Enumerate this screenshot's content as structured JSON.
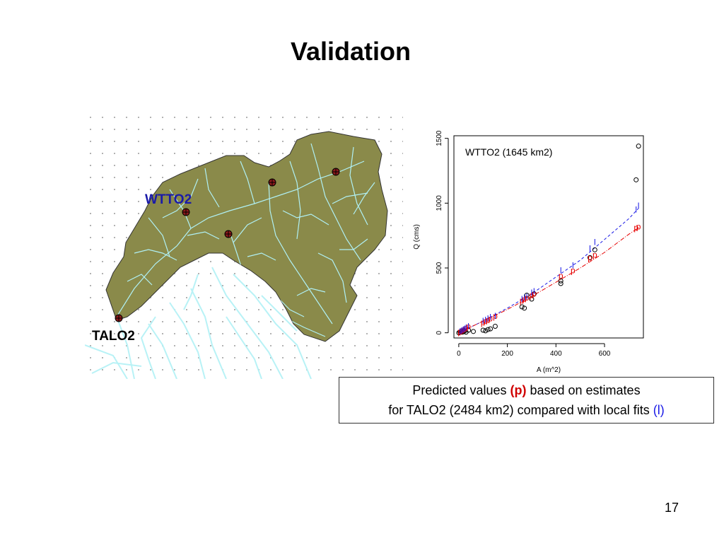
{
  "slide": {
    "title": "Validation",
    "page_number": "17"
  },
  "map": {
    "labels": {
      "wtto2": "WTTO2",
      "talo2": "TALO2"
    },
    "colors": {
      "watershed_fill": "#8a8a4a",
      "streams": "#b0f0f4",
      "gauge": "#8b1a1a"
    }
  },
  "caption": {
    "line1_before": "Predicted values ",
    "line1_highlight": "(p)",
    "line1_after": " based on estimates",
    "line2_before": "for TALO2 (2484 km2) compared with local fits ",
    "line2_highlight": "(l)"
  },
  "colors": {
    "predicted": "#e60000",
    "local": "#1a1ae6",
    "observed": "#000000"
  },
  "chart_data": {
    "type": "scatter",
    "annotation": "WTTO2 (1645 km2)",
    "xlabel": "A (m^2)",
    "ylabel": "Q (cms)",
    "xlim": [
      -20,
      760
    ],
    "ylim": [
      -40,
      1520
    ],
    "x_ticks": [
      0,
      200,
      400,
      600
    ],
    "y_ticks": [
      0,
      500,
      1000,
      1500
    ],
    "grid": false,
    "series": [
      {
        "marker": "o",
        "color": "#000000",
        "x": [
          0,
          5,
          10,
          15,
          20,
          25,
          30,
          40,
          60,
          100,
          110,
          120,
          130,
          150,
          260,
          270,
          280,
          300,
          310,
          420,
          420,
          540,
          560,
          730,
          740
        ],
        "y": [
          0,
          5,
          10,
          5,
          10,
          15,
          5,
          20,
          10,
          20,
          15,
          25,
          30,
          50,
          200,
          190,
          290,
          260,
          300,
          380,
          400,
          580,
          640,
          1180,
          1440
        ]
      },
      {
        "marker": "p",
        "color": "#e60000",
        "x": [
          5,
          10,
          15,
          20,
          25,
          30,
          40,
          100,
          110,
          120,
          130,
          150,
          260,
          270,
          280,
          300,
          310,
          420,
          470,
          540,
          560,
          730,
          740
        ],
        "y": [
          10,
          15,
          20,
          25,
          30,
          40,
          50,
          80,
          90,
          100,
          110,
          130,
          250,
          260,
          270,
          290,
          300,
          440,
          480,
          580,
          600,
          810,
          820
        ]
      },
      {
        "marker": "l",
        "color": "#1a1ae6",
        "x": [
          5,
          10,
          15,
          20,
          25,
          30,
          40,
          100,
          110,
          120,
          130,
          150,
          260,
          270,
          280,
          300,
          310,
          420,
          470,
          540,
          560,
          730,
          740
        ],
        "y": [
          10,
          15,
          20,
          25,
          30,
          40,
          50,
          90,
          100,
          110,
          120,
          130,
          260,
          270,
          280,
          310,
          320,
          480,
          520,
          650,
          700,
          950,
          980
        ]
      },
      {
        "line": "dashed",
        "color": "#1a1ae6",
        "x": [
          0,
          100,
          200,
          300,
          400,
          500,
          600,
          700,
          740
        ],
        "y": [
          0,
          90,
          190,
          300,
          430,
          560,
          720,
          880,
          960
        ]
      },
      {
        "line": "dashdot",
        "color": "#e60000",
        "x": [
          0,
          100,
          200,
          300,
          400,
          500,
          600,
          700,
          740
        ],
        "y": [
          0,
          90,
          180,
          280,
          390,
          500,
          620,
          760,
          810
        ]
      }
    ]
  }
}
